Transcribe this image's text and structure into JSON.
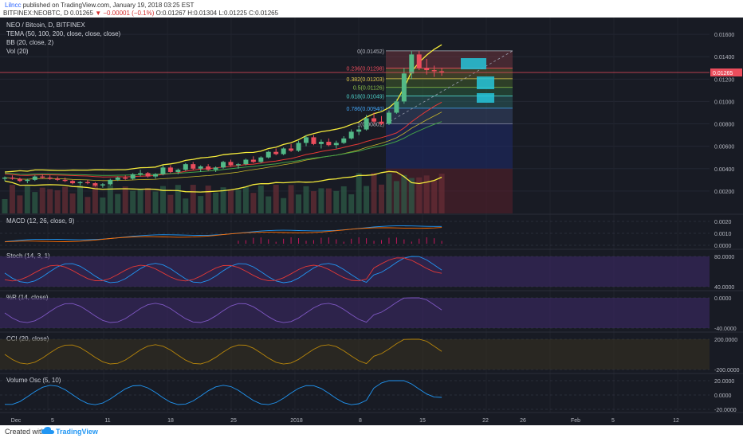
{
  "header": {
    "user": "Lilncc",
    "published": "published on TradingView.com, January 19, 2018 03:25 EST",
    "symbol": "BITFINEX:NEOBTC, D",
    "last": "0.01265",
    "change": "▼ −0.00001 (−0.1%)",
    "ohlc": "O:0.01267 H:0.01304 L:0.01225 C:0.01265"
  },
  "legend": {
    "title": "NEO / Bitcoin, D, BITFINEX",
    "tema": "TEMA (50, 100, 200, close, close, close)",
    "bb": "BB (20, close, 2)",
    "vol": "Vol (20)"
  },
  "price_labels": [
    "0.01600",
    "0.01400",
    "0.01200",
    "0.01000",
    "0.00800",
    "0.00600",
    "0.00400",
    "0.00200"
  ],
  "current_price": "0.01265",
  "fib_labels": [
    "0(0.01452)",
    "0.236(0.01298)",
    "0.382(0.01203)",
    "0.5(0.01126)",
    "0.618(0.01049)",
    "0.786(0.00940)",
    "1(0.00801)"
  ],
  "macd": {
    "title": "MACD (12, 26, close, 9)",
    "ticks": [
      "0.0020",
      "0.0010",
      "0.0000"
    ]
  },
  "stoch": {
    "title": "Stoch (14, 3, 1)",
    "ticks": [
      "80.0000",
      "40.0000"
    ]
  },
  "wpr": {
    "title": "%R (14, close)",
    "ticks": [
      "0.0000",
      "-40.0000"
    ]
  },
  "cci": {
    "title": "CCI (20, close)",
    "ticks": [
      "200.0000",
      "-200.0000"
    ]
  },
  "vosc": {
    "title": "Volume Osc (5, 10)",
    "ticks": [
      "20.0000",
      "0.0000",
      "-20.0000"
    ]
  },
  "x_labels": [
    "Dec",
    "5",
    "11",
    "18",
    "25",
    "2018",
    "8",
    "15",
    "22",
    "26",
    "Feb",
    "5",
    "12"
  ],
  "footer": {
    "created": "Created with",
    "brand": "TradingView"
  },
  "colors": {
    "bg": "#181b24",
    "up": "#53b987",
    "down": "#eb4d5c",
    "bb": "#f5eb3b",
    "tema50": "#e53935",
    "tema100": "#43a047",
    "tema200": "#f5d742",
    "macd": "#2196f3",
    "signal": "#ff6d00",
    "stoch_k": "#2196f3",
    "stoch_d": "#e53935",
    "wpr": "#7e57c2",
    "cci": "#b8860b",
    "vosc": "#2196f3"
  },
  "chart_data": {
    "type": "candlestick",
    "x_axis": [
      "Dec",
      "5",
      "11",
      "18",
      "25",
      "2018",
      "8",
      "15",
      "22",
      "26",
      "Feb",
      "5",
      "12"
    ],
    "y_range": [
      0,
      0.0175
    ],
    "candles": [
      [
        0.0031,
        0.0033,
        0.0029,
        0.0032
      ],
      [
        0.0032,
        0.0034,
        0.003,
        0.0031
      ],
      [
        0.0031,
        0.0032,
        0.0028,
        0.0029
      ],
      [
        0.0029,
        0.0031,
        0.0027,
        0.003
      ],
      [
        0.003,
        0.0034,
        0.0029,
        0.0033
      ],
      [
        0.0033,
        0.0035,
        0.0031,
        0.0032
      ],
      [
        0.0032,
        0.0034,
        0.003,
        0.0031
      ],
      [
        0.0031,
        0.0033,
        0.0029,
        0.003
      ],
      [
        0.003,
        0.0032,
        0.0028,
        0.0029
      ],
      [
        0.0029,
        0.003,
        0.0026,
        0.0027
      ],
      [
        0.0027,
        0.0029,
        0.0025,
        0.0028
      ],
      [
        0.0028,
        0.003,
        0.0026,
        0.0027
      ],
      [
        0.0027,
        0.0028,
        0.0024,
        0.0025
      ],
      [
        0.0025,
        0.0027,
        0.0023,
        0.0026
      ],
      [
        0.0026,
        0.0031,
        0.0025,
        0.003
      ],
      [
        0.003,
        0.0033,
        0.0029,
        0.0032
      ],
      [
        0.0032,
        0.0034,
        0.003,
        0.0031
      ],
      [
        0.0031,
        0.0036,
        0.003,
        0.0035
      ],
      [
        0.0035,
        0.0039,
        0.0033,
        0.0036
      ],
      [
        0.0036,
        0.0037,
        0.0032,
        0.0033
      ],
      [
        0.0033,
        0.0036,
        0.0031,
        0.0035
      ],
      [
        0.0035,
        0.0043,
        0.0034,
        0.0041
      ],
      [
        0.0041,
        0.0043,
        0.0036,
        0.0037
      ],
      [
        0.0037,
        0.004,
        0.0035,
        0.0039
      ],
      [
        0.0039,
        0.0045,
        0.0038,
        0.0044
      ],
      [
        0.0044,
        0.0046,
        0.0039,
        0.004
      ],
      [
        0.004,
        0.0043,
        0.0037,
        0.0042
      ],
      [
        0.0042,
        0.0044,
        0.0038,
        0.0039
      ],
      [
        0.0039,
        0.0042,
        0.0037,
        0.0041
      ],
      [
        0.0041,
        0.0047,
        0.004,
        0.0046
      ],
      [
        0.0046,
        0.0048,
        0.0042,
        0.0043
      ],
      [
        0.0043,
        0.0045,
        0.004,
        0.0044
      ],
      [
        0.0044,
        0.0049,
        0.0043,
        0.0048
      ],
      [
        0.0048,
        0.0051,
        0.0045,
        0.0046
      ],
      [
        0.0046,
        0.0051,
        0.0045,
        0.005
      ],
      [
        0.005,
        0.0056,
        0.0049,
        0.0055
      ],
      [
        0.0055,
        0.0058,
        0.0052,
        0.0053
      ],
      [
        0.0053,
        0.0059,
        0.0052,
        0.0058
      ],
      [
        0.0058,
        0.0062,
        0.0055,
        0.0056
      ],
      [
        0.0056,
        0.0065,
        0.0055,
        0.0063
      ],
      [
        0.0063,
        0.007,
        0.006,
        0.0068
      ],
      [
        0.0068,
        0.007,
        0.0061,
        0.0062
      ],
      [
        0.0062,
        0.0066,
        0.0058,
        0.0064
      ],
      [
        0.0064,
        0.0067,
        0.006,
        0.0061
      ],
      [
        0.0061,
        0.0065,
        0.0058,
        0.0063
      ],
      [
        0.0063,
        0.0069,
        0.0062,
        0.0067
      ],
      [
        0.0067,
        0.0075,
        0.0066,
        0.0073
      ],
      [
        0.0073,
        0.0078,
        0.007,
        0.0075
      ],
      [
        0.0075,
        0.0088,
        0.0074,
        0.0085
      ],
      [
        0.0085,
        0.009,
        0.008,
        0.0082
      ],
      [
        0.0082,
        0.0087,
        0.0079,
        0.008
      ],
      [
        0.008,
        0.0092,
        0.0079,
        0.009
      ],
      [
        0.009,
        0.0102,
        0.0089,
        0.01
      ],
      [
        0.01,
        0.013,
        0.0098,
        0.0125
      ],
      [
        0.0125,
        0.0145,
        0.012,
        0.0142
      ],
      [
        0.0142,
        0.0145,
        0.0128,
        0.013
      ],
      [
        0.013,
        0.0138,
        0.0124,
        0.0128
      ],
      [
        0.0128,
        0.0132,
        0.0122,
        0.0127
      ],
      [
        0.0127,
        0.013,
        0.0123,
        0.0126
      ]
    ],
    "fibonacci": [
      {
        "level": 0,
        "price": 0.01452
      },
      {
        "level": 0.236,
        "price": 0.01298
      },
      {
        "level": 0.382,
        "price": 0.01203
      },
      {
        "level": 0.5,
        "price": 0.01126
      },
      {
        "level": 0.618,
        "price": 0.01049
      },
      {
        "level": 0.786,
        "price": 0.0094
      },
      {
        "level": 1,
        "price": 0.00801
      }
    ],
    "panes": [
      "price",
      "MACD (12, 26, close, 9)",
      "Stoch (14, 3, 1)",
      "%R (14, close)",
      "CCI (20, close)",
      "Volume Osc (5, 10)"
    ]
  }
}
